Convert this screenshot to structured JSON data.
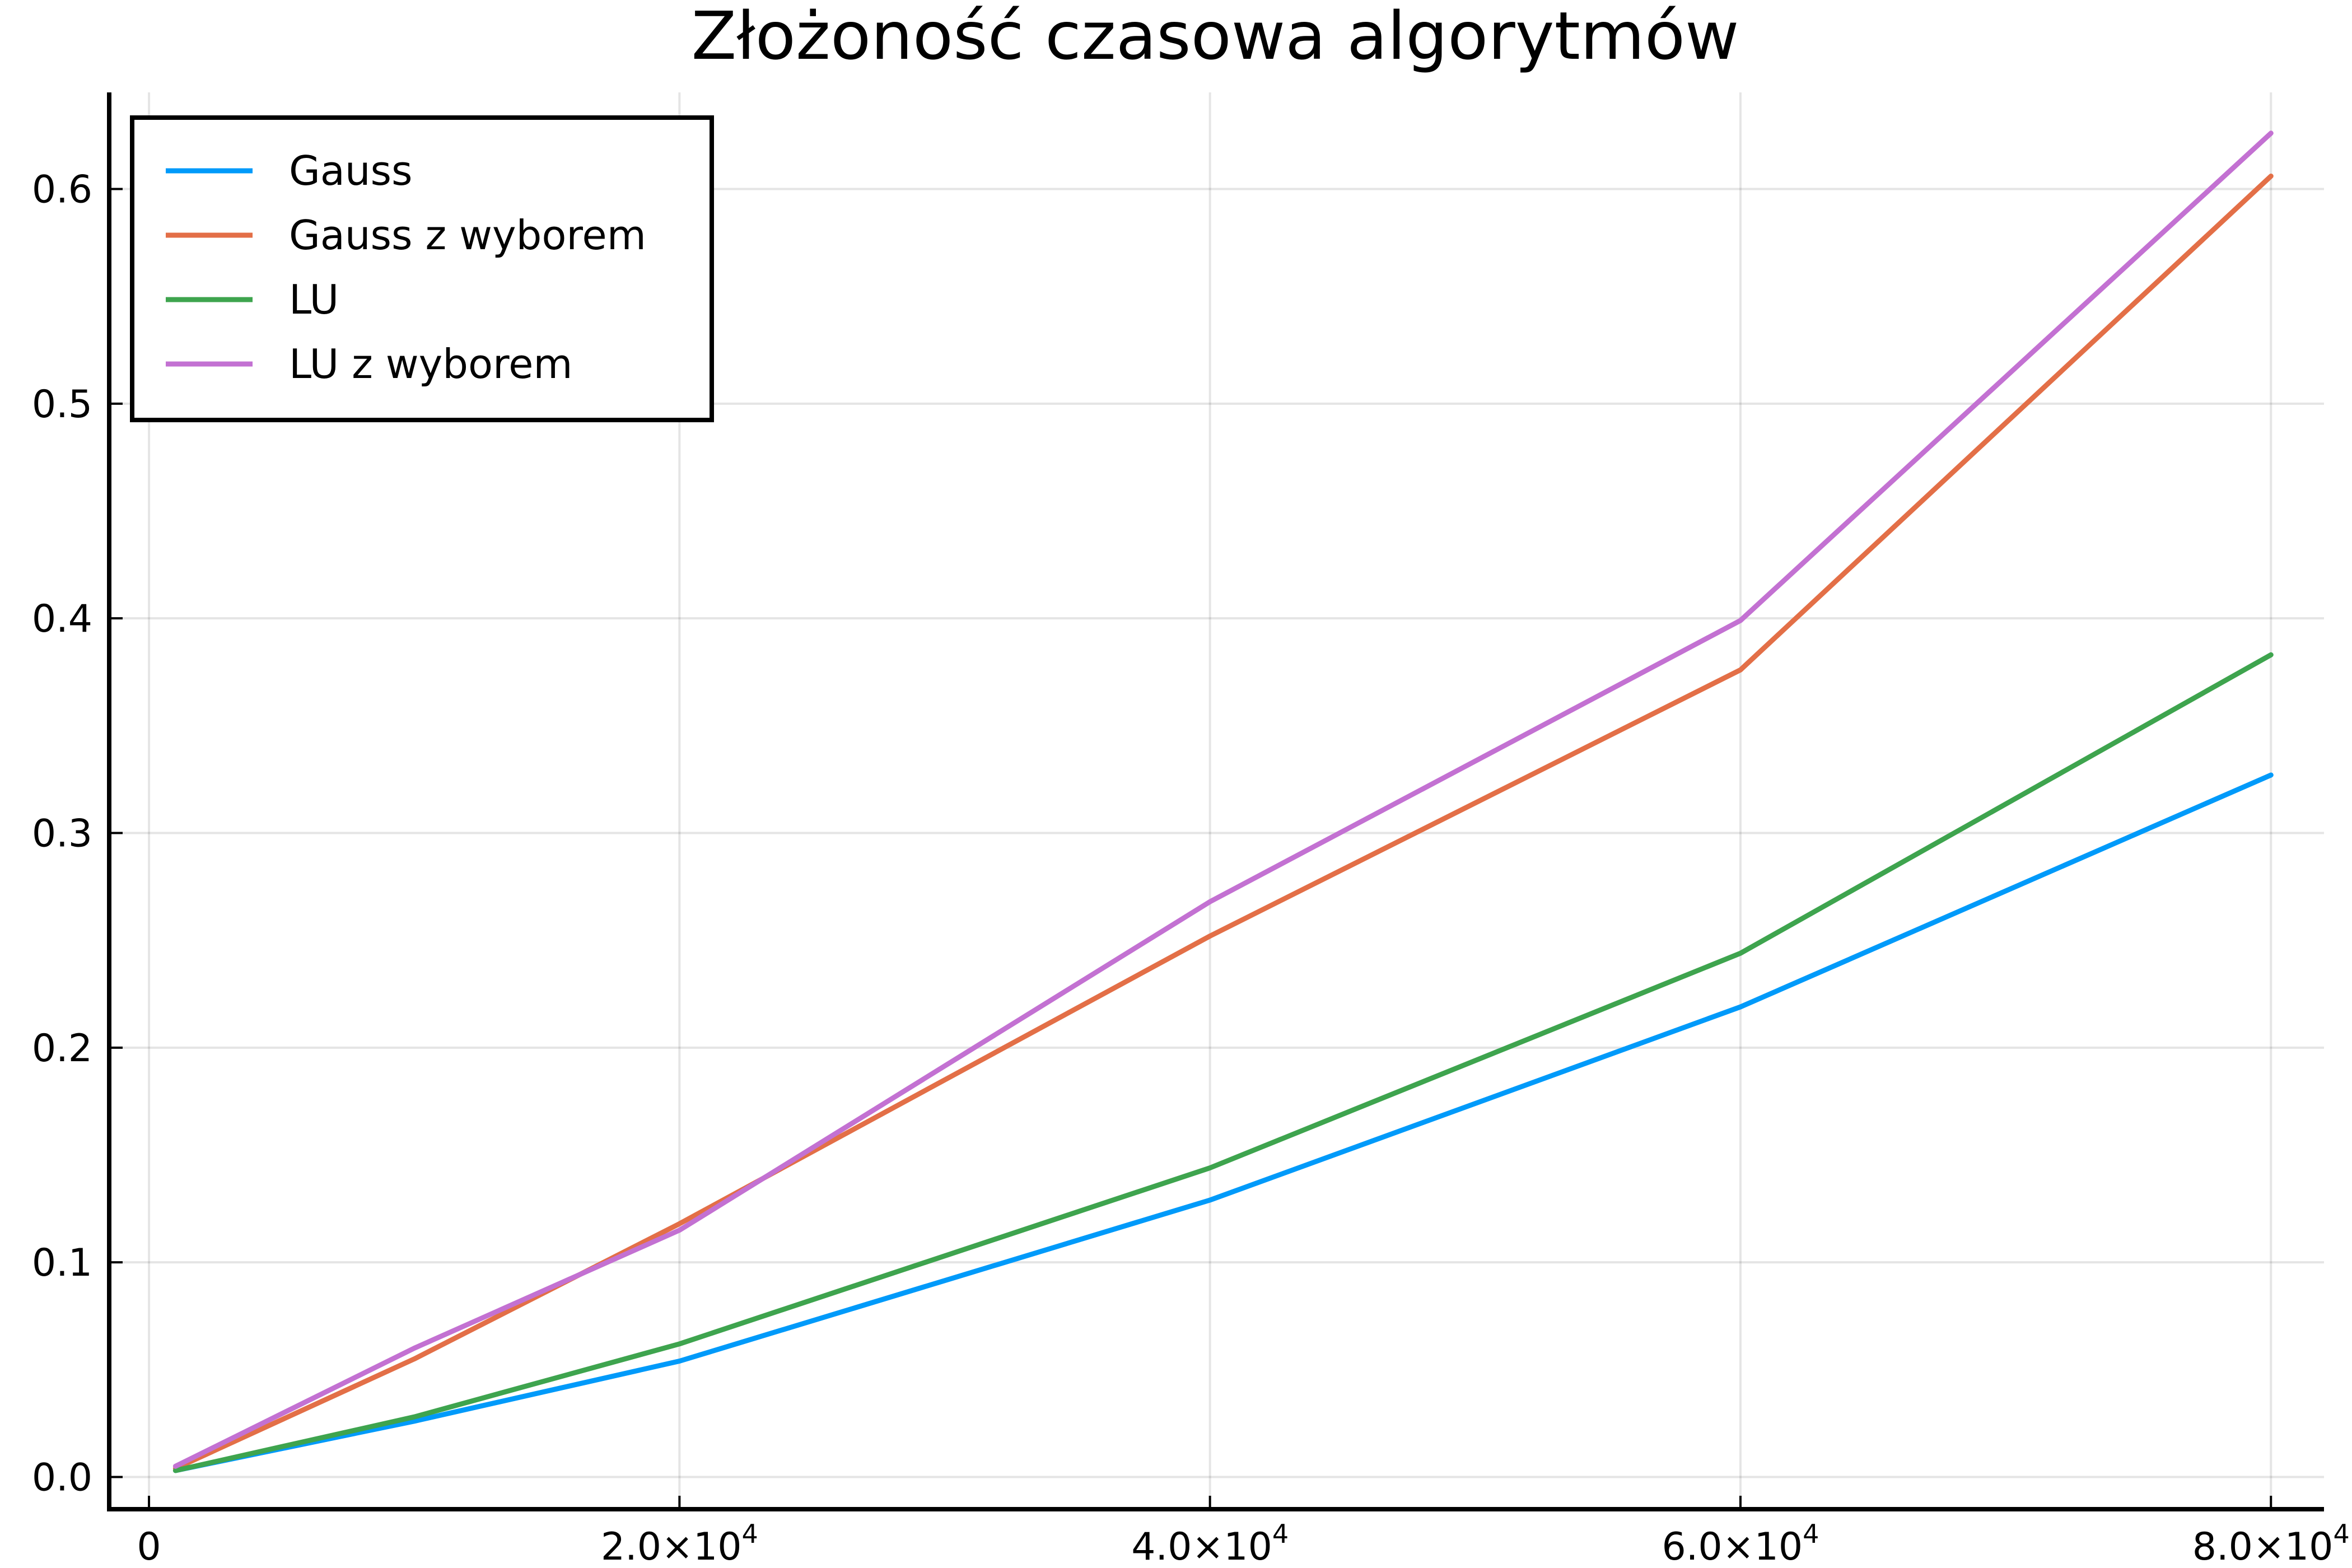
{
  "chart_data": {
    "type": "line",
    "title": "Złożoność czasowa algorytmów",
    "xlabel": "",
    "ylabel": "",
    "x": [
      1000,
      10000,
      20000,
      40000,
      60000,
      80000
    ],
    "xlim": [
      -1500,
      82000
    ],
    "ylim": [
      -0.015,
      0.645
    ],
    "x_ticks": [
      {
        "value": 0,
        "mantissa": "0",
        "exponent": ""
      },
      {
        "value": 20000,
        "mantissa": "2.0×10",
        "exponent": "4"
      },
      {
        "value": 40000,
        "mantissa": "4.0×10",
        "exponent": "4"
      },
      {
        "value": 60000,
        "mantissa": "6.0×10",
        "exponent": "4"
      },
      {
        "value": 80000,
        "mantissa": "8.0×10",
        "exponent": "4"
      }
    ],
    "y_ticks": [
      {
        "value": 0.0,
        "label": "0.0"
      },
      {
        "value": 0.1,
        "label": "0.1"
      },
      {
        "value": 0.2,
        "label": "0.2"
      },
      {
        "value": 0.3,
        "label": "0.3"
      },
      {
        "value": 0.4,
        "label": "0.4"
      },
      {
        "value": 0.5,
        "label": "0.5"
      },
      {
        "value": 0.6,
        "label": "0.6"
      }
    ],
    "grid": true,
    "legend_position": "top-left",
    "series": [
      {
        "name": "Gauss",
        "color": "#009AFA",
        "values": [
          0.003,
          0.026,
          0.054,
          0.129,
          0.219,
          0.327
        ]
      },
      {
        "name": "Gauss z wyborem",
        "color": "#E36F47",
        "values": [
          0.004,
          0.055,
          0.118,
          0.252,
          0.376,
          0.606
        ]
      },
      {
        "name": "LU",
        "color": "#3EA44E",
        "values": [
          0.003,
          0.028,
          0.062,
          0.144,
          0.244,
          0.383
        ]
      },
      {
        "name": "LU z wyborem",
        "color": "#C371D2",
        "values": [
          0.005,
          0.06,
          0.115,
          0.268,
          0.399,
          0.626
        ]
      }
    ]
  }
}
